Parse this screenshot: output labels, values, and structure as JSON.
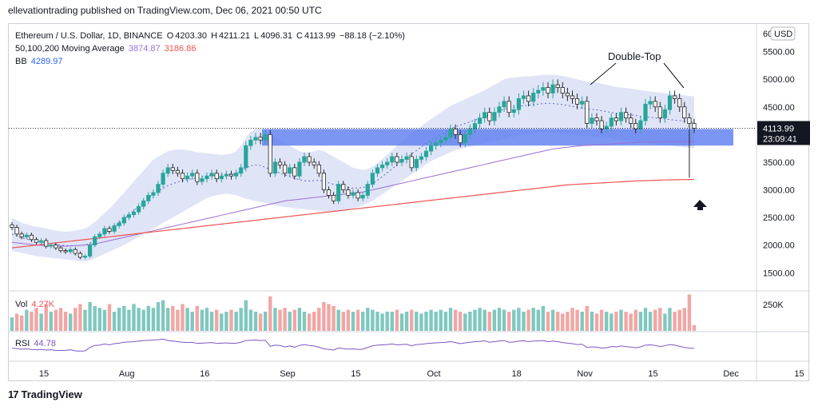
{
  "header": {
    "published": "ellevationtrading published on TradingView.com, Dec 06, 2021 00:50 UTC"
  },
  "footer": {
    "brand": "TradingView",
    "logo_glyph": "17"
  },
  "legend": {
    "symbol": "Ethereum / U.S. Dollar, 1D, BINANCE",
    "o_label": "O",
    "o_value": "4203.30",
    "h_label": "H",
    "h_value": "4211.21",
    "l_label": "L",
    "l_value": "4096.31",
    "c_label": "C",
    "c_value": "4113.99",
    "change": "−88.18 (−2.10%)",
    "ma_label": "50,100,200 Moving Average",
    "ma_value_1": "3874.87",
    "ma_value_2": "3186.86",
    "bb_label": "BB",
    "bb_value": "4289.97",
    "vol_label": "Vol",
    "vol_value": "4.27K",
    "rsi_label": "RSI",
    "rsi_value": "44.78"
  },
  "price_badge": {
    "price": "4113.99",
    "countdown": "23:09:41"
  },
  "currency_button": "USD",
  "colors": {
    "up": "#26a69a",
    "down": "#262626",
    "ma_short": "#9c6fd6",
    "ma_long": "#ef5350",
    "bb_fill": "#c7cdf0",
    "zone": "#5b7cf0"
  },
  "chart_data": {
    "type": "candlestick",
    "title": "Ethereum / U.S. Dollar, 1D, BINANCE",
    "annotations": [
      "Double-Top"
    ],
    "ylim": [
      1200,
      6000
    ],
    "yticks": [
      "5500.00",
      "5000.00",
      "4500.00",
      "4000.00",
      "3500.00",
      "3000.00",
      "2500.00",
      "2000.00",
      "1500.00"
    ],
    "ytick_values": [
      5500,
      5000,
      4500,
      4000,
      3500,
      3000,
      2500,
      2000,
      1500
    ],
    "partial_top_tick": "60",
    "xticks": [
      "15",
      "Aug",
      "16",
      "Sep",
      "15",
      "Oct",
      "18",
      "Nov",
      "15",
      "Dec",
      "15"
    ],
    "xtick_days": [
      0,
      17,
      33,
      50,
      64,
      80,
      97,
      111,
      125,
      141,
      155
    ],
    "vol_axis_tick": "250K",
    "zone": {
      "low": 3800,
      "high": 4100
    },
    "closes": [
      2320,
      2200,
      2150,
      2180,
      2100,
      2050,
      2080,
      1980,
      2000,
      1950,
      1900,
      1880,
      1920,
      1850,
      1780,
      1800,
      2000,
      2150,
      2200,
      2300,
      2250,
      2350,
      2400,
      2500,
      2550,
      2600,
      2700,
      2800,
      2900,
      2950,
      3100,
      3300,
      3400,
      3350,
      3300,
      3200,
      3250,
      3300,
      3150,
      3200,
      3250,
      3300,
      3200,
      3250,
      3280,
      3250,
      3300,
      3400,
      3800,
      3900,
      3950,
      3900,
      4000,
      3300,
      3500,
      3450,
      3300,
      3400,
      3250,
      3500,
      3600,
      3500,
      3450,
      3300,
      3000,
      2900,
      2800,
      3100,
      3000,
      2900,
      2950,
      2850,
      2900,
      3100,
      3300,
      3400,
      3450,
      3500,
      3600,
      3500,
      3550,
      3600,
      3400,
      3550,
      3600,
      3700,
      3800,
      3850,
      3900,
      3950,
      4100,
      4000,
      3850,
      4000,
      4100,
      4200,
      4300,
      4400,
      4250,
      4400,
      4500,
      4600,
      4400,
      4450,
      4650,
      4700,
      4600,
      4750,
      4800,
      4850,
      4750,
      4900,
      4850,
      4750,
      4700,
      4650,
      4550,
      4600,
      4200,
      4300,
      4250,
      4100,
      4150,
      4300,
      4250,
      4400,
      4300,
      4200,
      4100,
      4250,
      4550,
      4600,
      4500,
      4300,
      4450,
      4700,
      4650,
      4500,
      4300,
      4200,
      4113.99
    ],
    "ma50": [
      2050,
      2040,
      2030,
      2020,
      2010,
      2000,
      1995,
      1990,
      1985,
      1982,
      1980,
      1980,
      1985,
      1990,
      1995,
      2000,
      2010,
      2020,
      2040,
      2060,
      2080,
      2100,
      2120,
      2140,
      2160,
      2180,
      2200,
      2220,
      2240,
      2260,
      2280,
      2300,
      2320,
      2340,
      2360,
      2380,
      2400,
      2420,
      2440,
      2460,
      2480,
      2500,
      2520,
      2540,
      2560,
      2580,
      2600,
      2620,
      2640,
      2660,
      2680,
      2700,
      2720,
      2740,
      2760,
      2780,
      2800,
      2810,
      2820,
      2830,
      2840,
      2850,
      2860,
      2870,
      2880,
      2890,
      2900,
      2910,
      2920,
      2930,
      2940,
      2950,
      2960,
      2980,
      3000,
      3020,
      3040,
      3060,
      3080,
      3100,
      3120,
      3140,
      3160,
      3180,
      3200,
      3220,
      3240,
      3260,
      3280,
      3300,
      3320,
      3340,
      3360,
      3380,
      3400,
      3420,
      3440,
      3460,
      3480,
      3500,
      3520,
      3540,
      3560,
      3580,
      3600,
      3620,
      3640,
      3660,
      3680,
      3700,
      3720,
      3740,
      3750,
      3760,
      3770,
      3780,
      3790,
      3800,
      3805,
      3810,
      3815,
      3820,
      3825,
      3830,
      3835,
      3840,
      3845,
      3850,
      3855,
      3860,
      3864,
      3866,
      3868,
      3870,
      3871,
      3872,
      3873,
      3874,
      3874.5,
      3874.7,
      3874.87
    ],
    "ma200": [
      1950,
      1960,
      1970,
      1980,
      1990,
      2000,
      2010,
      2020,
      2030,
      2040,
      2050,
      2060,
      2070,
      2080,
      2090,
      2100,
      2110,
      2120,
      2130,
      2140,
      2150,
      2160,
      2170,
      2180,
      2190,
      2200,
      2210,
      2220,
      2230,
      2240,
      2250,
      2260,
      2270,
      2280,
      2290,
      2300,
      2310,
      2320,
      2330,
      2340,
      2350,
      2360,
      2370,
      2380,
      2390,
      2400,
      2410,
      2420,
      2430,
      2440,
      2450,
      2460,
      2470,
      2480,
      2490,
      2500,
      2510,
      2520,
      2530,
      2540,
      2550,
      2560,
      2570,
      2580,
      2590,
      2600,
      2610,
      2620,
      2630,
      2640,
      2650,
      2660,
      2670,
      2680,
      2690,
      2700,
      2710,
      2720,
      2730,
      2740,
      2750,
      2760,
      2770,
      2780,
      2790,
      2800,
      2810,
      2820,
      2830,
      2840,
      2850,
      2860,
      2870,
      2880,
      2890,
      2900,
      2910,
      2920,
      2930,
      2940,
      2950,
      2960,
      2970,
      2980,
      2990,
      3000,
      3010,
      3020,
      3030,
      3040,
      3050,
      3060,
      3070,
      3080,
      3090,
      3095,
      3100,
      3105,
      3110,
      3115,
      3120,
      3125,
      3130,
      3135,
      3140,
      3145,
      3150,
      3155,
      3160,
      3163,
      3166,
      3169,
      3172,
      3175,
      3178,
      3180,
      3182,
      3184,
      3185,
      3186,
      3186.86
    ],
    "bb_upper": [
      2500,
      2450,
      2400,
      2380,
      2350,
      2330,
      2320,
      2300,
      2280,
      2260,
      2250,
      2240,
      2250,
      2260,
      2280,
      2300,
      2350,
      2420,
      2500,
      2580,
      2660,
      2750,
      2850,
      2950,
      3050,
      3150,
      3250,
      3350,
      3450,
      3550,
      3600,
      3650,
      3700,
      3720,
      3730,
      3730,
      3720,
      3700,
      3680,
      3670,
      3660,
      3650,
      3640,
      3630,
      3640,
      3660,
      3700,
      3800,
      3950,
      4050,
      4100,
      4100,
      4050,
      4000,
      3950,
      3900,
      3850,
      3800,
      3750,
      3700,
      3680,
      3680,
      3700,
      3720,
      3700,
      3650,
      3600,
      3550,
      3500,
      3450,
      3400,
      3380,
      3360,
      3380,
      3420,
      3480,
      3560,
      3640,
      3720,
      3800,
      3880,
      3950,
      4020,
      4080,
      4150,
      4220,
      4280,
      4340,
      4400,
      4460,
      4520,
      4560,
      4600,
      4640,
      4680,
      4720,
      4760,
      4800,
      4850,
      4900,
      4950,
      5000,
      5020,
      5030,
      5040,
      5050,
      5050,
      5060,
      5070,
      5080,
      5080,
      5080,
      5075,
      5060,
      5040,
      5020,
      5000,
      4980,
      4960,
      4950,
      4940,
      4920,
      4900,
      4880,
      4860,
      4850,
      4840,
      4830,
      4820,
      4800,
      4790,
      4780,
      4770,
      4760,
      4750,
      4740,
      4730,
      4720,
      4710,
      4700,
      4690
    ],
    "bb_lower": [
      1900,
      1880,
      1860,
      1840,
      1820,
      1800,
      1790,
      1780,
      1770,
      1760,
      1750,
      1740,
      1730,
      1720,
      1710,
      1700,
      1720,
      1760,
      1800,
      1840,
      1880,
      1920,
      1960,
      2000,
      2050,
      2100,
      2150,
      2200,
      2250,
      2300,
      2350,
      2400,
      2450,
      2500,
      2550,
      2600,
      2650,
      2700,
      2750,
      2800,
      2850,
      2880,
      2900,
      2920,
      2930,
      2920,
      2900,
      2870,
      2840,
      2820,
      2800,
      2780,
      2760,
      2740,
      2720,
      2700,
      2690,
      2680,
      2670,
      2660,
      2650,
      2640,
      2630,
      2620,
      2610,
      2600,
      2600,
      2610,
      2620,
      2640,
      2660,
      2690,
      2720,
      2760,
      2800,
      2860,
      2920,
      2980,
      3040,
      3100,
      3160,
      3220,
      3280,
      3340,
      3400,
      3460,
      3520,
      3560,
      3600,
      3640,
      3680,
      3720,
      3740,
      3760,
      3780,
      3800,
      3820,
      3840,
      3860,
      3880,
      3900,
      3920,
      3940,
      3960,
      3980,
      4000,
      4010,
      4020,
      4030,
      4040,
      4050,
      4040,
      4030,
      4020,
      4010,
      4000,
      3990,
      3980,
      3970,
      3960,
      3950,
      3940,
      3930,
      3920,
      3910,
      3900,
      3890,
      3880,
      3870,
      3860,
      3850,
      3840,
      3830,
      3820,
      3810,
      3800,
      3790,
      3780,
      3770,
      3760,
      3750
    ],
    "rsi": [
      45,
      44,
      42,
      43,
      41,
      40,
      41,
      39,
      40,
      38,
      37,
      38,
      40,
      36,
      35,
      36,
      48,
      55,
      56,
      60,
      57,
      61,
      63,
      66,
      67,
      68,
      70,
      72,
      73,
      74,
      75,
      77,
      72,
      70,
      68,
      66,
      65,
      66,
      62,
      63,
      64,
      65,
      62,
      63,
      64,
      62,
      63,
      66,
      72,
      73,
      74,
      72,
      73,
      52,
      56,
      55,
      50,
      53,
      49,
      55,
      58,
      55,
      53,
      49,
      43,
      41,
      39,
      46,
      44,
      42,
      43,
      41,
      42,
      48,
      54,
      56,
      57,
      58,
      60,
      57,
      58,
      59,
      54,
      58,
      59,
      61,
      63,
      64,
      65,
      66,
      68,
      65,
      61,
      64,
      66,
      68,
      69,
      71,
      66,
      68,
      70,
      72,
      66,
      67,
      70,
      71,
      68,
      70,
      71,
      72,
      68,
      70,
      68,
      65,
      63,
      61,
      58,
      59,
      48,
      50,
      49,
      46,
      47,
      51,
      50,
      53,
      51,
      49,
      47,
      50,
      56,
      57,
      55,
      51,
      54,
      58,
      56,
      52,
      48,
      46,
      44.78
    ],
    "volume_rel": [
      0.35,
      0.45,
      0.4,
      0.55,
      0.5,
      0.6,
      0.45,
      0.7,
      0.5,
      0.55,
      0.6,
      0.5,
      0.45,
      0.6,
      0.7,
      0.55,
      0.75,
      0.65,
      0.6,
      0.55,
      0.7,
      0.5,
      0.6,
      0.65,
      0.55,
      0.7,
      0.6,
      0.55,
      0.65,
      0.6,
      0.75,
      0.8,
      0.6,
      0.65,
      0.55,
      0.7,
      0.6,
      0.5,
      0.65,
      0.55,
      0.6,
      0.5,
      0.55,
      0.45,
      0.5,
      0.55,
      0.5,
      0.6,
      0.8,
      0.55,
      0.5,
      0.45,
      0.5,
      0.9,
      0.6,
      0.55,
      0.6,
      0.5,
      0.55,
      0.6,
      0.5,
      0.45,
      0.5,
      0.6,
      0.75,
      0.7,
      0.65,
      0.55,
      0.5,
      0.55,
      0.5,
      0.55,
      0.5,
      0.6,
      0.55,
      0.5,
      0.45,
      0.5,
      0.5,
      0.55,
      0.45,
      0.5,
      0.55,
      0.5,
      0.45,
      0.5,
      0.55,
      0.5,
      0.55,
      0.5,
      0.6,
      0.55,
      0.5,
      0.45,
      0.5,
      0.55,
      0.6,
      0.55,
      0.5,
      0.55,
      0.6,
      0.55,
      0.5,
      0.55,
      0.6,
      0.5,
      0.55,
      0.6,
      0.55,
      0.65,
      0.5,
      0.55,
      0.5,
      0.45,
      0.5,
      0.6,
      0.55,
      0.5,
      0.65,
      0.5,
      0.45,
      0.55,
      0.5,
      0.45,
      0.5,
      0.55,
      0.5,
      0.45,
      0.55,
      0.5,
      0.6,
      0.5,
      0.55,
      0.6,
      0.45,
      0.6,
      0.5,
      0.55,
      0.6,
      0.95,
      0.15
    ]
  }
}
